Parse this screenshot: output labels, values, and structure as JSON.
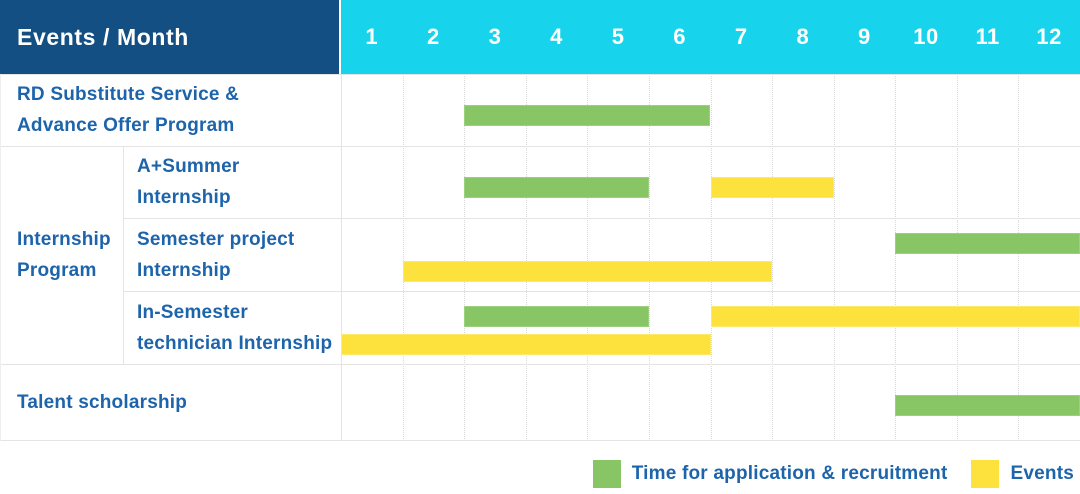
{
  "header": {
    "title": "Events / Month",
    "months": [
      "1",
      "2",
      "3",
      "4",
      "5",
      "6",
      "7",
      "8",
      "9",
      "10",
      "11",
      "12"
    ]
  },
  "group_cell": {
    "lines": [
      "Internship",
      "Program"
    ]
  },
  "rows": [
    {
      "name": "rd-substitute-service-advance-offer-program",
      "lines": [
        "RD Substitute Service &",
        "Advance Offer Program"
      ],
      "bars": [
        {
          "color": "green",
          "start_month": 3,
          "end_month": 6,
          "lane": "single"
        }
      ]
    },
    {
      "name": "a-plus-summer-internship",
      "lines": [
        "A+Summer",
        "Internship"
      ],
      "bars": [
        {
          "color": "green",
          "start_month": 3,
          "end_month": 5,
          "lane": "single"
        },
        {
          "color": "yellow",
          "start_month": 7,
          "end_month": 8,
          "lane": "single"
        }
      ]
    },
    {
      "name": "semester-project-internship",
      "lines": [
        "Semester project",
        "Internship"
      ],
      "bars": [
        {
          "color": "green",
          "start_month": 10,
          "end_month": 12,
          "lane": "top"
        },
        {
          "color": "yellow",
          "start_month": 2,
          "end_month": 7,
          "lane": "bottom"
        }
      ]
    },
    {
      "name": "in-semester-technician-internship",
      "lines": [
        "In-Semester",
        "technician Internship"
      ],
      "bars": [
        {
          "color": "green",
          "start_month": 3,
          "end_month": 5,
          "lane": "top"
        },
        {
          "color": "yellow",
          "start_month": 7,
          "end_month": 12,
          "lane": "top"
        },
        {
          "color": "yellow",
          "start_month": 1,
          "end_month": 6,
          "lane": "bottom"
        }
      ]
    },
    {
      "name": "talent-scholarship",
      "lines": [
        "Talent scholarship"
      ],
      "bars": [
        {
          "color": "green",
          "start_month": 10,
          "end_month": 12,
          "lane": "single"
        }
      ]
    }
  ],
  "legend": [
    {
      "swatch": "green",
      "label": "Time for application & recruitment"
    },
    {
      "swatch": "yellow",
      "label": "Events"
    }
  ],
  "colors": {
    "header_bg": "#134F82",
    "months_bg": "#17D3EC",
    "label_text": "#1D64AB",
    "green": "#87C565",
    "yellow": "#FDE23E"
  },
  "chart_data": {
    "type": "bar",
    "subtype": "gantt-timeline",
    "title": "Events / Month",
    "x_axis": {
      "label": "Month",
      "ticks": [
        1,
        2,
        3,
        4,
        5,
        6,
        7,
        8,
        9,
        10,
        11,
        12
      ],
      "range": [
        1,
        12
      ]
    },
    "categories": [
      "RD Substitute Service & Advance Offer Program",
      "A+Summer Internship",
      "Semester project Internship",
      "In-Semester technician Internship",
      "Talent scholarship"
    ],
    "group": {
      "label": "Internship Program",
      "members": [
        "A+Summer Internship",
        "Semester project Internship",
        "In-Semester technician Internship"
      ]
    },
    "series": [
      {
        "name": "Time for application & recruitment",
        "color": "#87C565",
        "spans": [
          {
            "category": "RD Substitute Service & Advance Offer Program",
            "start_month": 3,
            "end_month": 6
          },
          {
            "category": "A+Summer Internship",
            "start_month": 3,
            "end_month": 5
          },
          {
            "category": "Semester project Internship",
            "start_month": 10,
            "end_month": 12
          },
          {
            "category": "In-Semester technician Internship",
            "start_month": 3,
            "end_month": 5
          },
          {
            "category": "Talent scholarship",
            "start_month": 10,
            "end_month": 12
          }
        ]
      },
      {
        "name": "Events",
        "color": "#FDE23E",
        "spans": [
          {
            "category": "A+Summer Internship",
            "start_month": 7,
            "end_month": 8
          },
          {
            "category": "Semester project Internship",
            "start_month": 2,
            "end_month": 7
          },
          {
            "category": "In-Semester technician Internship",
            "start_month": 7,
            "end_month": 12
          },
          {
            "category": "In-Semester technician Internship",
            "start_month": 1,
            "end_month": 6
          }
        ]
      }
    ],
    "legend_position": "bottom-right",
    "grid": "dotted-vertical-month-lines"
  }
}
